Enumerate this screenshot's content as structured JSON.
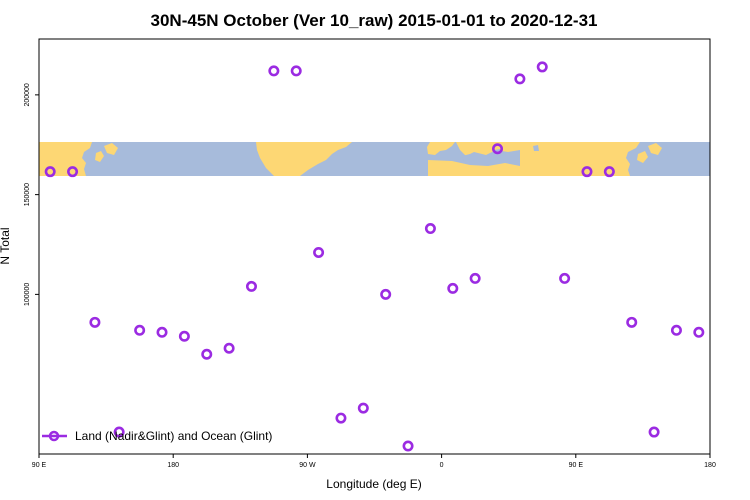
{
  "chart_data": {
    "type": "scatter",
    "title": "30N-45N October (Ver 10_raw)   2015-01-01 to 2020-12-31",
    "xlabel": "Longitude (deg E)",
    "ylabel": "N Total",
    "xlim": [
      90,
      270
    ],
    "ylim": [
      20000,
      228000
    ],
    "x_ticks": [
      {
        "value": 90,
        "label": "90 E"
      },
      {
        "value": 126,
        "label": "180"
      },
      {
        "value": 162,
        "label": "90 W"
      },
      {
        "value": 198,
        "label": "0"
      },
      {
        "value": 234,
        "label": "90 E"
      },
      {
        "value": 270,
        "label": "180"
      }
    ],
    "y_ticks": [
      {
        "value": 100000,
        "label": "100000"
      },
      {
        "value": 150000,
        "label": "150000"
      },
      {
        "value": 200000,
        "label": "200000"
      }
    ],
    "map_band": {
      "y_range": [
        145000,
        163000
      ],
      "ocean_color": "#a7bbdb",
      "land_color": "#fdd774",
      "description": "world map strip 30N-45N"
    },
    "series": [
      {
        "name": "Land (Nadir&Glint) and Ocean (Glint)",
        "color": "#9b2be2",
        "marker": "open-circle",
        "points": [
          {
            "x": 93,
            "y": 161500
          },
          {
            "x": 99,
            "y": 161500
          },
          {
            "x": 105,
            "y": 86000
          },
          {
            "x": 111.5,
            "y": 31000
          },
          {
            "x": 117,
            "y": 82000
          },
          {
            "x": 123,
            "y": 81000
          },
          {
            "x": 129,
            "y": 79000
          },
          {
            "x": 135,
            "y": 70000
          },
          {
            "x": 141,
            "y": 73000
          },
          {
            "x": 147,
            "y": 104000
          },
          {
            "x": 153,
            "y": 212000
          },
          {
            "x": 159,
            "y": 212000
          },
          {
            "x": 165,
            "y": 121000
          },
          {
            "x": 171,
            "y": 38000
          },
          {
            "x": 177,
            "y": 43000
          },
          {
            "x": 183,
            "y": 100000
          },
          {
            "x": 189,
            "y": 24000
          },
          {
            "x": 195,
            "y": 133000
          },
          {
            "x": 201,
            "y": 103000
          },
          {
            "x": 207,
            "y": 108000
          },
          {
            "x": 213,
            "y": 173000
          },
          {
            "x": 219,
            "y": 208000
          },
          {
            "x": 225,
            "y": 214000
          },
          {
            "x": 231,
            "y": 108000
          },
          {
            "x": 237,
            "y": 161500
          },
          {
            "x": 243,
            "y": 161500
          },
          {
            "x": 249,
            "y": 86000
          },
          {
            "x": 255,
            "y": 31000
          },
          {
            "x": 261,
            "y": 82000
          },
          {
            "x": 267,
            "y": 81000
          }
        ]
      }
    ],
    "legend": {
      "placement": "bottom-left"
    },
    "grid": false
  }
}
